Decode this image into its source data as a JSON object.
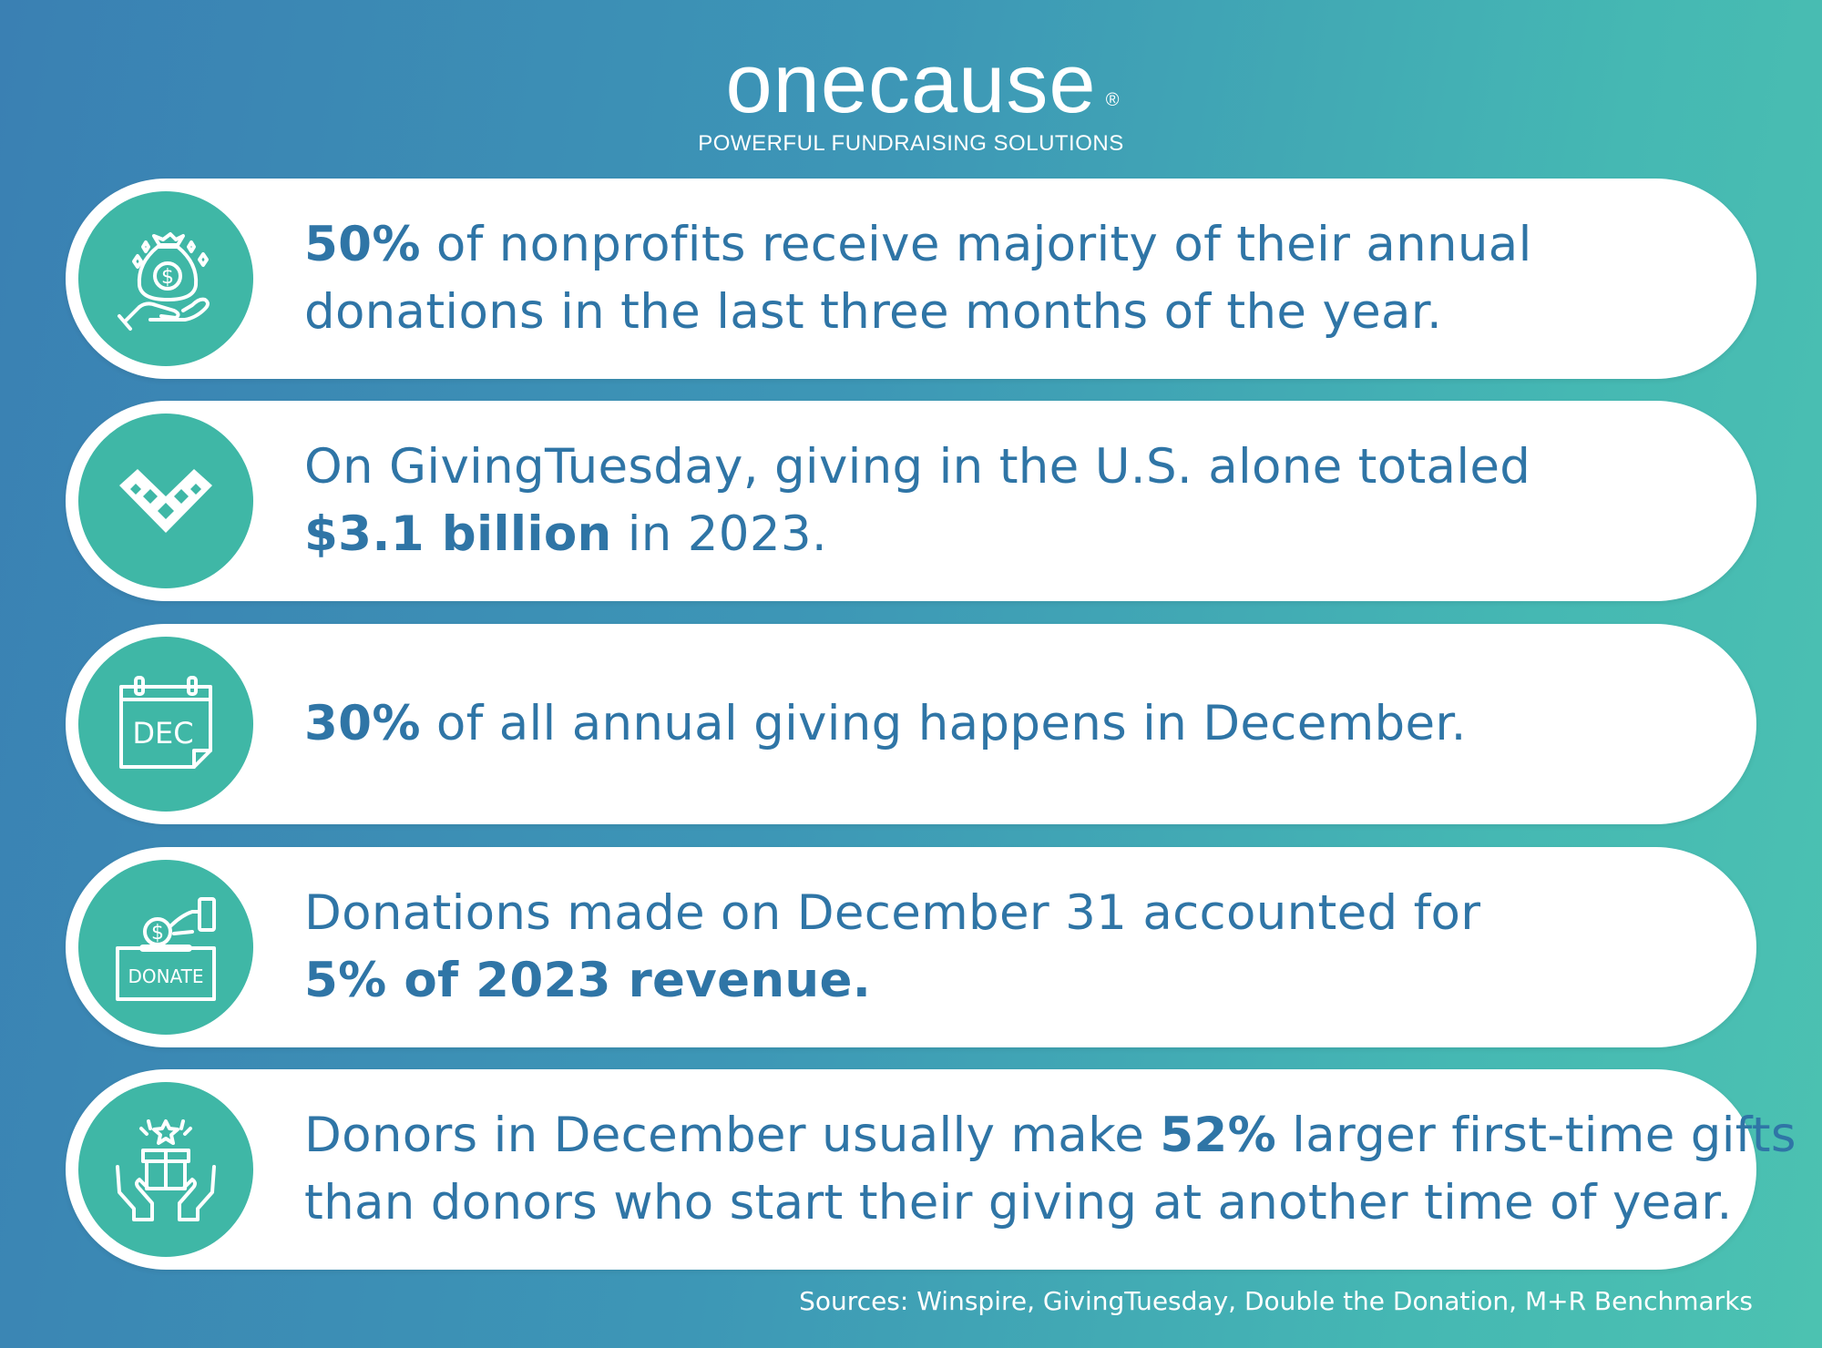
{
  "brand": {
    "name": "onecause",
    "registered": "®",
    "tagline": "POWERFUL FUNDRAISING SOLUTIONS"
  },
  "colors": {
    "accent": "#3fb7a6",
    "text": "#2f75a6",
    "card": "#ffffff"
  },
  "stats": [
    {
      "icon": "money-bag-hand-icon",
      "line1": [
        {
          "b": "50%"
        },
        {
          "t": " of nonprofits receive majority of their annual"
        }
      ],
      "line2": [
        {
          "t": "donations in the last three months of the year."
        }
      ]
    },
    {
      "icon": "giving-tuesday-heart-icon",
      "line1": [
        {
          "t": "On GivingTuesday, giving in the U.S. alone totaled"
        }
      ],
      "line2": [
        {
          "b": "$3.1 billion"
        },
        {
          "t": " in 2023."
        }
      ]
    },
    {
      "icon": "calendar-dec-icon",
      "icon_label": "DEC",
      "line1": [
        {
          "b": "30%"
        },
        {
          "t": " of all annual giving happens in December."
        }
      ],
      "line2": []
    },
    {
      "icon": "donate-box-icon",
      "icon_label": "DONATE",
      "line1": [
        {
          "t": "Donations made on December 31 accounted for"
        }
      ],
      "line2": [
        {
          "b": "5% of 2023 revenue."
        }
      ]
    },
    {
      "icon": "gift-hands-icon",
      "line1": [
        {
          "t": "Donors in December usually make "
        },
        {
          "b": "52%"
        },
        {
          "t": " larger first-time gifts"
        }
      ],
      "line2": [
        {
          "t": "than donors who start their giving at another time of year."
        }
      ]
    }
  ],
  "sources": "Sources: Winspire, GivingTuesday, Double the Donation, M+R Benchmarks"
}
